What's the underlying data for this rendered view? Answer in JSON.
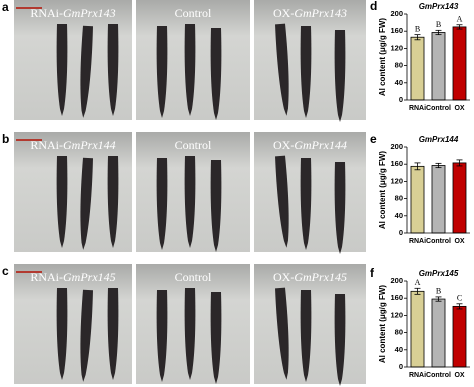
{
  "photo_panels": [
    {
      "label": "a",
      "images": [
        {
          "prefix": "RNAi-",
          "gene": "GmPrx143"
        },
        {
          "text": "Control"
        },
        {
          "prefix": "OX-",
          "gene": "GmPrx143"
        }
      ]
    },
    {
      "label": "b",
      "images": [
        {
          "prefix": "RNAi-",
          "gene": "GmPrx144"
        },
        {
          "text": "Control"
        },
        {
          "prefix": "OX-",
          "gene": "GmPrx144"
        }
      ]
    },
    {
      "label": "c",
      "images": [
        {
          "prefix": "RNAi-",
          "gene": "GmPrx145"
        },
        {
          "text": "Control"
        },
        {
          "prefix": "OX-",
          "gene": "GmPrx145"
        }
      ]
    }
  ],
  "chart_data": [
    {
      "type": "bar",
      "panel_label": "d",
      "title": "GmPrx143",
      "y_label": "Al content (μg/g FW)",
      "categories": [
        "RNAi",
        "Control",
        "OX"
      ],
      "values": [
        146,
        157,
        170
      ],
      "errors": [
        6,
        5,
        5
      ],
      "significance": [
        "B",
        "B",
        "A"
      ],
      "colors": [
        "#d8cf95",
        "#b4b4b4",
        "#c00000"
      ],
      "ylim": [
        0,
        200
      ],
      "yticks": [
        0,
        40,
        80,
        120,
        160,
        200
      ]
    },
    {
      "type": "bar",
      "panel_label": "e",
      "title": "GmPrx144",
      "y_label": "Al content (μg/g FW)",
      "categories": [
        "RNAi",
        "Control",
        "OX"
      ],
      "values": [
        155,
        157,
        163
      ],
      "errors": [
        8,
        5,
        7
      ],
      "colors": [
        "#d8cf95",
        "#b4b4b4",
        "#c00000"
      ],
      "ylim": [
        0,
        200
      ],
      "yticks": [
        0,
        40,
        80,
        120,
        160,
        200
      ]
    },
    {
      "type": "bar",
      "panel_label": "f",
      "title": "GmPrx145",
      "y_label": "Al content (μg/g FW)",
      "categories": [
        "RNAi",
        "Control",
        "OX"
      ],
      "values": [
        176,
        158,
        141
      ],
      "errors": [
        7,
        5,
        6
      ],
      "significance": [
        "A",
        "B",
        "C"
      ],
      "colors": [
        "#d8cf95",
        "#b4b4b4",
        "#c00000"
      ],
      "ylim": [
        0,
        200
      ],
      "yticks": [
        0,
        40,
        80,
        120,
        160,
        200
      ]
    }
  ]
}
